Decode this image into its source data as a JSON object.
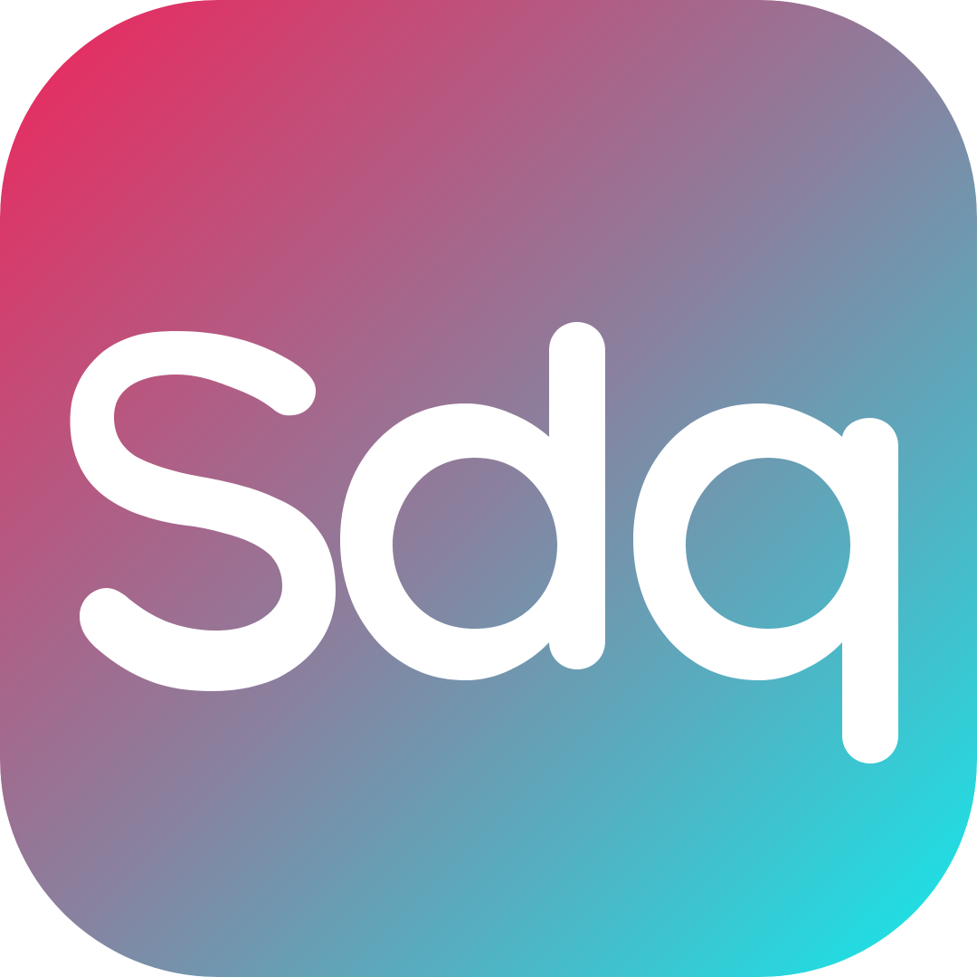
{
  "logo": {
    "text": "Sdq",
    "gradient_start": "#f0245a",
    "gradient_mid": "#8a809e",
    "gradient_end": "#12eaec",
    "glyph_color": "#ffffff"
  }
}
